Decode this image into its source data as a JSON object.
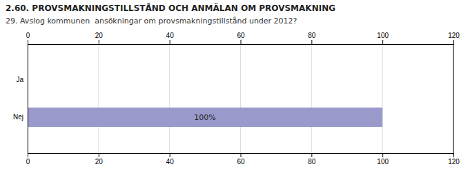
{
  "chart_data": {
    "type": "bar",
    "orientation": "horizontal",
    "title": "2.60. PROVSMAKNINGSTILLSTÅND OCH ANMÄLAN OM PROVSMAKNING",
    "subtitle": "29. Avslog kommunen  ansökningar om provsmakningstillstånd under 2012?",
    "categories": [
      "Nej",
      "Ja"
    ],
    "values": [
      100,
      0
    ],
    "colors": [
      "#9999cc",
      "#dcdce8"
    ],
    "data_labels": true,
    "value_labels": [
      "100%",
      null
    ],
    "xlim": [
      0,
      120
    ],
    "xticks": [
      0,
      20,
      40,
      60,
      80,
      100,
      120
    ],
    "grid": true
  }
}
